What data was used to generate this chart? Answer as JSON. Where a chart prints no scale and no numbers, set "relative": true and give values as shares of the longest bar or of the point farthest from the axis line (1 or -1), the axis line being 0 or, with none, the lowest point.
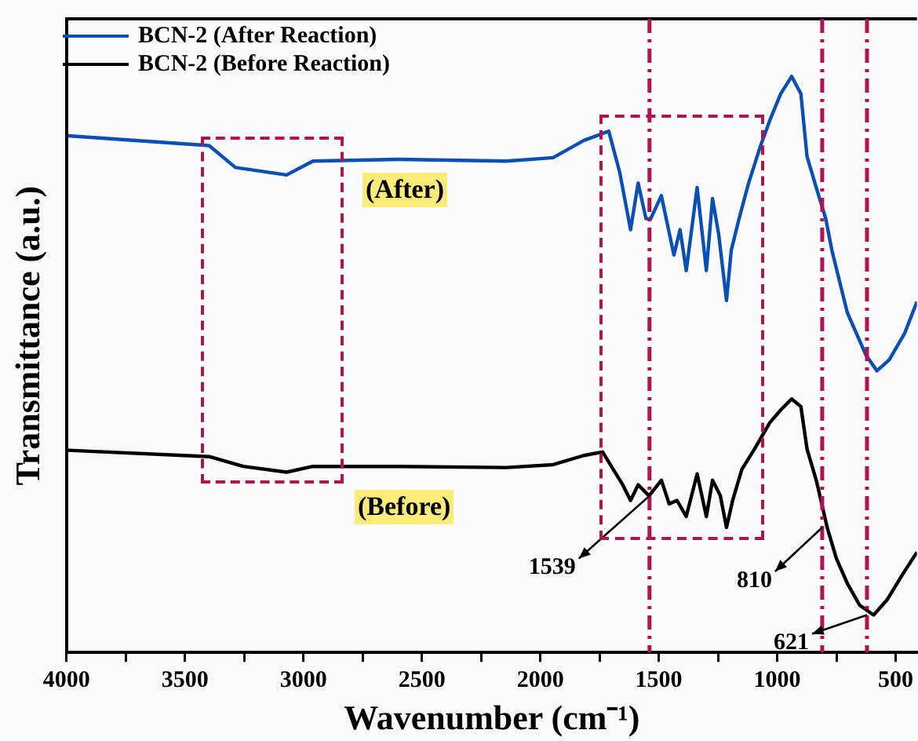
{
  "chart_data": {
    "type": "line",
    "relative": true,
    "xlabel": "Wavenumber (cm⁻¹)",
    "ylabel": "Transmittance (a.u.)",
    "xlim": [
      4000,
      410
    ],
    "xticks": [
      4000,
      {
        "value": 3750,
        "label": null
      },
      3500,
      {
        "value": 3250,
        "label": null
      },
      3000,
      {
        "value": 2750,
        "label": null
      },
      2500,
      {
        "value": 2250,
        "label": null
      },
      2000,
      {
        "value": 1750,
        "label": null
      },
      1500,
      {
        "value": 1250,
        "label": null
      },
      1000,
      {
        "value": 750,
        "label": null
      },
      500
    ],
    "grid": false,
    "legend": "top left",
    "marker": "none",
    "line_style": "solid",
    "series": [
      {
        "name": "BCN-2 (After Reaction)",
        "color": "#0a50b4",
        "x": [
          3993,
          3398,
          3287,
          3071,
          2960,
          2600,
          2143,
          1946,
          1816,
          1750,
          1711,
          1665,
          1619,
          1587,
          1554,
          1534,
          1489,
          1436,
          1410,
          1384,
          1338,
          1299,
          1273,
          1247,
          1214,
          1194,
          1161,
          1122,
          1070,
          1031,
          985,
          939,
          900,
          874,
          835,
          795,
          769,
          704,
          625,
          579,
          527,
          462,
          410
        ],
        "values": [
          0.897,
          0.88,
          0.842,
          0.829,
          0.853,
          0.856,
          0.853,
          0.859,
          0.889,
          0.899,
          0.905,
          0.834,
          0.734,
          0.815,
          0.753,
          0.753,
          0.793,
          0.69,
          0.734,
          0.663,
          0.807,
          0.663,
          0.788,
          0.726,
          0.611,
          0.698,
          0.753,
          0.813,
          0.88,
          0.924,
          0.97,
          1,
          0.97,
          0.861,
          0.807,
          0.753,
          0.698,
          0.59,
          0.516,
          0.489,
          0.508,
          0.554,
          0.609
        ]
      },
      {
        "name": "BCN-2 (Before Reaction)",
        "color": "#000000",
        "x": [
          3993,
          3398,
          3254,
          3071,
          2960,
          2600,
          2143,
          1946,
          1816,
          1737,
          1652,
          1619,
          1587,
          1541,
          1489,
          1456,
          1423,
          1384,
          1338,
          1299,
          1273,
          1240,
          1214,
          1188,
          1149,
          1096,
          1031,
          985,
          939,
          900,
          874,
          835,
          789,
          750,
          704,
          652,
          593,
          535,
          470,
          410
        ],
        "values": [
          0.351,
          0.34,
          0.323,
          0.313,
          0.323,
          0.323,
          0.321,
          0.326,
          0.342,
          0.348,
          0.291,
          0.264,
          0.291,
          0.272,
          0.299,
          0.258,
          0.264,
          0.236,
          0.31,
          0.236,
          0.299,
          0.272,
          0.217,
          0.264,
          0.318,
          0.353,
          0.399,
          0.421,
          0.44,
          0.427,
          0.353,
          0.299,
          0.217,
          0.163,
          0.12,
          0.082,
          0.065,
          0.092,
          0.136,
          0.174
        ]
      }
    ],
    "ref_lines": [
      {
        "axis": "x",
        "value": 1539,
        "color": "#b0134f",
        "line_style": "dashed"
      },
      {
        "axis": "x",
        "value": 810,
        "color": "#b0134f",
        "line_style": "dashed"
      },
      {
        "axis": "x",
        "value": 621,
        "color": "#b0134f",
        "line_style": "dashed"
      }
    ],
    "annotations": [
      "(After)",
      "(Before)",
      {
        "text": "1539",
        "x": 1539,
        "y": 0.272
      },
      {
        "text": "810",
        "x": 810,
        "y": 0.217
      },
      {
        "text": "621",
        "x": 621,
        "y": 0.065
      }
    ]
  }
}
